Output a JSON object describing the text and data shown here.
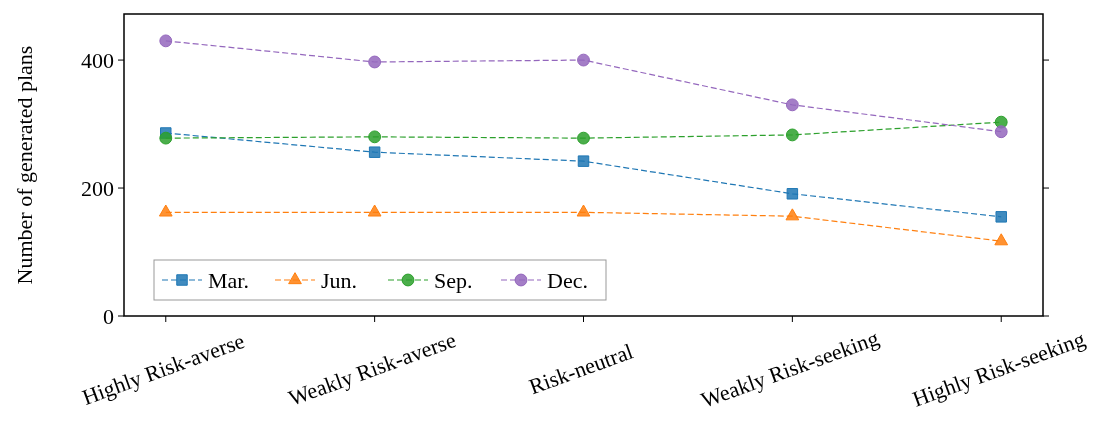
{
  "chart_data": {
    "type": "line",
    "ylabel": "Number of generated plans",
    "categories": [
      "Highly Risk-averse",
      "Weakly Risk-averse",
      "Risk-neutral",
      "Weakly Risk-seeking",
      "Highly Risk-seeking"
    ],
    "series": [
      {
        "name": "Mar.",
        "color": "#1f77b4",
        "marker": "square",
        "values": [
          286,
          256,
          242,
          191,
          155
        ]
      },
      {
        "name": "Jun.",
        "color": "#ff7f0e",
        "marker": "triangle",
        "values": [
          162,
          162,
          162,
          156,
          117
        ]
      },
      {
        "name": "Sep.",
        "color": "#2ca02c",
        "marker": "circle",
        "values": [
          278,
          280,
          278,
          283,
          303
        ]
      },
      {
        "name": "Dec.",
        "color": "#9467bd",
        "marker": "circle",
        "values": [
          430,
          397,
          400,
          330,
          288
        ]
      }
    ],
    "ylim": [
      0,
      472
    ],
    "yticks": [
      0,
      200,
      400
    ],
    "grid": false,
    "legend": "bottom left",
    "line_style": "dashed"
  }
}
